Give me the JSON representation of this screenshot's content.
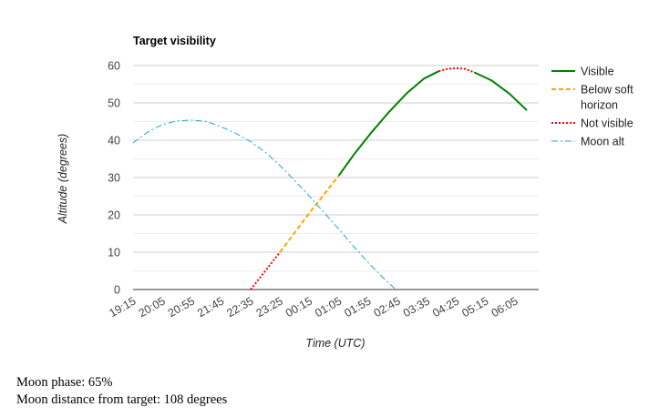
{
  "chart_data": {
    "type": "line",
    "title": "Target visibility",
    "xlabel": "Time (UTC)",
    "ylabel": "Altitude (degrees)",
    "ylim": [
      0,
      60
    ],
    "yticks": [
      0,
      10,
      20,
      30,
      40,
      50,
      60
    ],
    "xlim": [
      "19:15",
      "06:45"
    ],
    "xticks": [
      "19:15",
      "20:05",
      "20:55",
      "21:45",
      "22:35",
      "23:25",
      "00:15",
      "01:05",
      "01:55",
      "02:45",
      "03:35",
      "04:25",
      "05:15",
      "06:05"
    ],
    "grid": true,
    "legend_position": "right",
    "series": [
      {
        "name": "Visible",
        "color": "#008000",
        "style": "solid",
        "points": [
          [
            "01:05",
            30.5
          ],
          [
            "01:30",
            36
          ],
          [
            "02:00",
            42
          ],
          [
            "02:30",
            47.5
          ],
          [
            "03:00",
            52.5
          ],
          [
            "03:30",
            56.5
          ],
          [
            "03:55",
            58.5
          ]
        ]
      },
      {
        "name": "Visible",
        "color": "#008000",
        "style": "solid",
        "points": [
          [
            "04:55",
            58.2
          ],
          [
            "05:25",
            56
          ],
          [
            "05:55",
            52.5
          ],
          [
            "06:25",
            48
          ]
        ]
      },
      {
        "name": "Below soft horizon",
        "color": "#FFA500",
        "style": "dashed",
        "points": [
          [
            "23:25",
            10
          ],
          [
            "00:15",
            20.5
          ],
          [
            "01:05",
            30.5
          ]
        ]
      },
      {
        "name": "Not visible",
        "color": "#FF0000",
        "style": "dotted",
        "points": [
          [
            "22:35",
            0
          ],
          [
            "23:25",
            10
          ]
        ]
      },
      {
        "name": "Not visible",
        "color": "#FF0000",
        "style": "dotted",
        "points": [
          [
            "03:55",
            58.5
          ],
          [
            "04:10",
            59.1
          ],
          [
            "04:25",
            59.3
          ],
          [
            "04:40",
            59.1
          ],
          [
            "04:55",
            58.2
          ]
        ]
      },
      {
        "name": "Moon alt",
        "color": "#1FA6D6",
        "style": "dashdot",
        "points": [
          [
            "19:15",
            39.3
          ],
          [
            "19:40",
            42.2
          ],
          [
            "20:05",
            44.2
          ],
          [
            "20:30",
            45.2
          ],
          [
            "20:55",
            45.4
          ],
          [
            "21:20",
            45
          ],
          [
            "21:45",
            43.6
          ],
          [
            "22:10",
            41.8
          ],
          [
            "22:35",
            39.6
          ],
          [
            "23:00",
            36.8
          ],
          [
            "23:25",
            33.2
          ],
          [
            "23:50",
            29.2
          ],
          [
            "00:15",
            25
          ],
          [
            "00:40",
            20.6
          ],
          [
            "01:05",
            16.2
          ],
          [
            "01:30",
            11.6
          ],
          [
            "01:55",
            7.2
          ],
          [
            "02:20",
            3.2
          ],
          [
            "02:40",
            0.3
          ]
        ]
      }
    ],
    "legend": [
      {
        "label": "Visible",
        "color": "#008000",
        "style": "solid"
      },
      {
        "label_lines": [
          "Below soft",
          "horizon"
        ],
        "color": "#FFA500",
        "style": "dashed"
      },
      {
        "label": "Not visible",
        "color": "#FF0000",
        "style": "dotted"
      },
      {
        "label": "Moon alt",
        "color": "#1FA6D6",
        "style": "dashdot"
      }
    ]
  },
  "info": {
    "moon_phase": "Moon phase: 65%",
    "moon_distance": "Moon distance from target: 108 degrees"
  }
}
